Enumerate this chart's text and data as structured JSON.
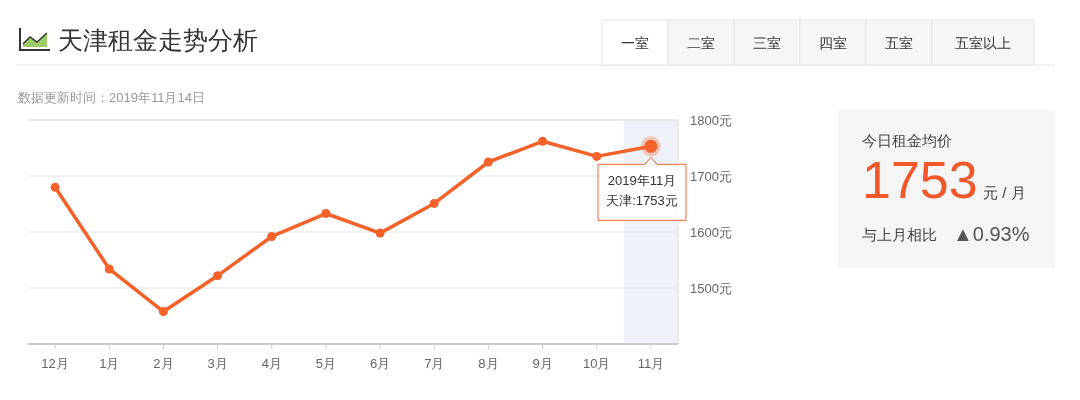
{
  "chart_data": {
    "type": "line",
    "title": "天津租金走势分析",
    "subtitle": "数据更新时间：2019年11月14日",
    "categories": [
      "12月",
      "1月",
      "2月",
      "3月",
      "4月",
      "5月",
      "6月",
      "7月",
      "8月",
      "9月",
      "10月",
      "11月"
    ],
    "series": [
      {
        "color": "#f4622a",
        "values": [
          1680,
          1534,
          1458,
          1522,
          1592,
          1633,
          1598,
          1651,
          1725,
          1762,
          1735,
          1753
        ]
      }
    ],
    "ylim": [
      1400,
      1800
    ],
    "yticks": [
      {
        "value": 1500,
        "label": "1500元"
      },
      {
        "value": 1600,
        "label": "1600元"
      },
      {
        "value": 1700,
        "label": "1700元"
      },
      {
        "value": 1800,
        "label": "1800元"
      }
    ],
    "grid": "y",
    "marker": "circle",
    "line_style": "solid",
    "bands": [
      {
        "axis": "x",
        "from": "11月",
        "to": "11月",
        "color": "#eef2f8"
      }
    ],
    "annotations": [
      "一室",
      "二室",
      "三室",
      "四室",
      "五室",
      "五室以上",
      "今日租金均价",
      "1753",
      "元 / 月",
      "与上月相比",
      "▲0.93%",
      {
        "text": "2019年11月",
        "x": "11月",
        "y": 1753
      },
      "天津:1753元"
    ]
  }
}
